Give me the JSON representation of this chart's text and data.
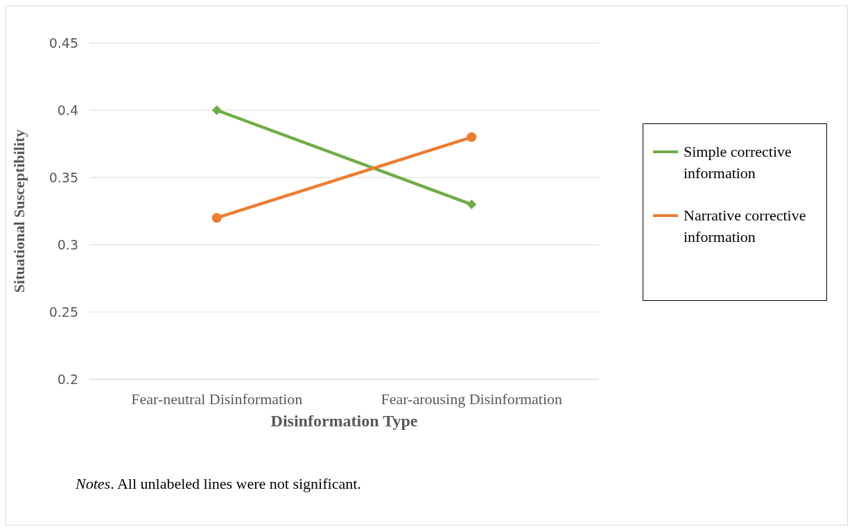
{
  "chart_data": {
    "type": "line",
    "xlabel": "Disinformation Type",
    "ylabel": "Situational Susceptibility",
    "categories": [
      "Fear-neutral Disinformation",
      "Fear-arousing Disinformation"
    ],
    "series": [
      {
        "name": "Simple corrective information",
        "color": "#70ad47",
        "values": [
          0.4,
          0.33
        ],
        "marker": "diamond"
      },
      {
        "name": "Narrative corrective information",
        "color": "#ed7d31",
        "values": [
          0.32,
          0.38
        ],
        "marker": "circle"
      }
    ],
    "ylim": [
      0.2,
      0.45
    ],
    "yticks": [
      0.2,
      0.25,
      0.3,
      0.35,
      0.4,
      0.45
    ],
    "grid": "y",
    "legend": "right",
    "annotations": [
      "Notes. All unlabeled lines were not significant."
    ]
  }
}
